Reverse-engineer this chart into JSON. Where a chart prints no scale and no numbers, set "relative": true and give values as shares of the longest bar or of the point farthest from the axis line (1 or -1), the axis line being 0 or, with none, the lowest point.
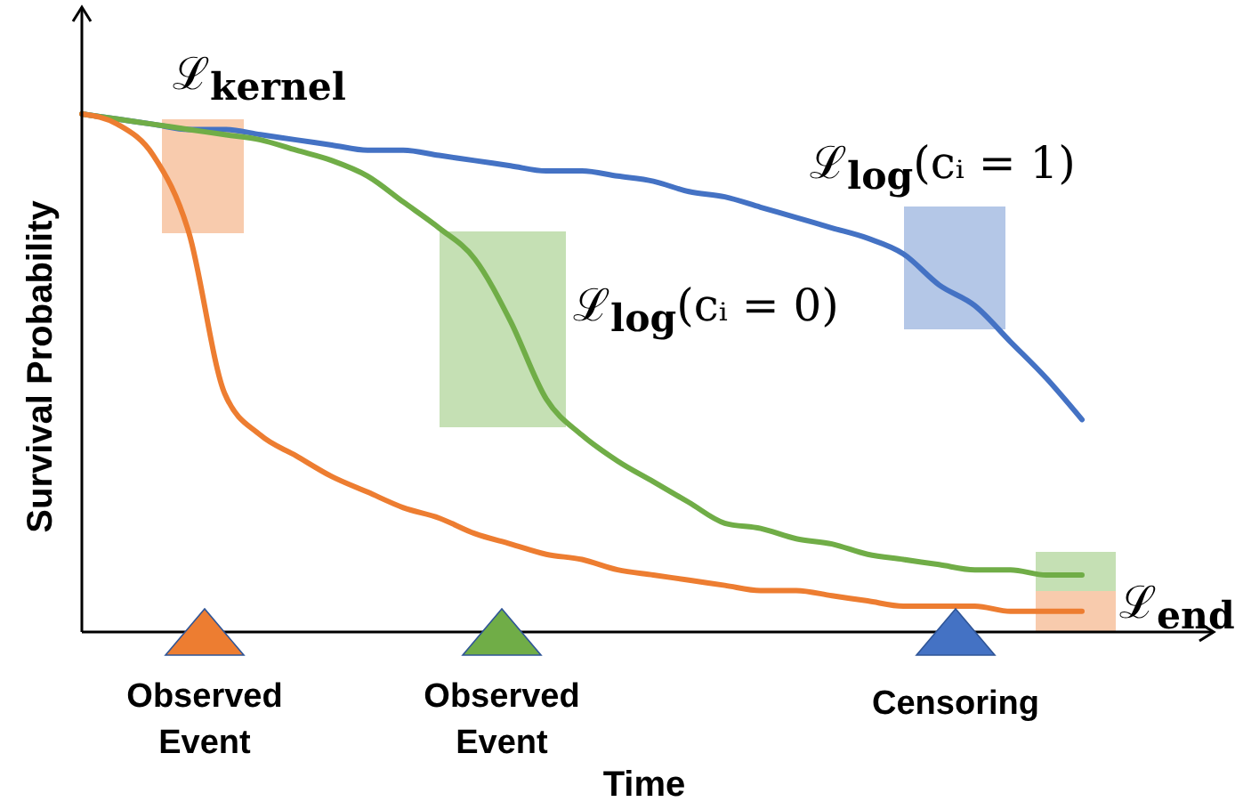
{
  "chart_data": {
    "type": "line",
    "relative": true,
    "xlabel": "Time",
    "ylabel": "Survival Probability",
    "categories": [
      null,
      null,
      null,
      null,
      null,
      null,
      null,
      null,
      null,
      null,
      null,
      null,
      null,
      null,
      null,
      null,
      null,
      null,
      null,
      null,
      null,
      null,
      null,
      null,
      null,
      null,
      null,
      null,
      null
    ],
    "series": [
      {
        "color": "#4472c4",
        "values": [
          1.0,
          0.99,
          0.98,
          0.97,
          0.97,
          0.96,
          0.95,
          0.94,
          0.93,
          0.93,
          0.92,
          0.91,
          0.9,
          0.89,
          0.89,
          0.88,
          0.87,
          0.85,
          0.84,
          0.82,
          0.8,
          0.78,
          0.76,
          0.73,
          0.67,
          0.63,
          0.56,
          0.49,
          0.41
        ]
      },
      {
        "color": "#70ad47",
        "values": [
          1.0,
          0.99,
          0.98,
          0.97,
          0.96,
          0.95,
          0.93,
          0.91,
          0.88,
          0.83,
          0.78,
          0.72,
          0.6,
          0.45,
          0.38,
          0.33,
          0.29,
          0.25,
          0.21,
          0.2,
          0.18,
          0.17,
          0.15,
          0.14,
          0.13,
          0.12,
          0.12,
          0.11,
          0.11
        ]
      },
      {
        "color": "#ed7d31",
        "values": [
          1.0,
          0.98,
          0.92,
          0.77,
          0.46,
          0.38,
          0.34,
          0.3,
          0.27,
          0.24,
          0.22,
          0.19,
          0.17,
          0.15,
          0.14,
          0.12,
          0.11,
          0.1,
          0.09,
          0.08,
          0.08,
          0.07,
          0.06,
          0.05,
          0.05,
          0.05,
          0.04,
          0.04,
          0.04
        ]
      }
    ],
    "annotations": [
      "ℒ$_{kernel}$",
      "ℒ$_{log}$(cᵢ = 1)",
      "ℒ$_{log}$(cᵢ = 0)",
      "ℒ$_{end}$",
      "Observed Event",
      "Observed Event",
      "Censoring"
    ]
  }
}
